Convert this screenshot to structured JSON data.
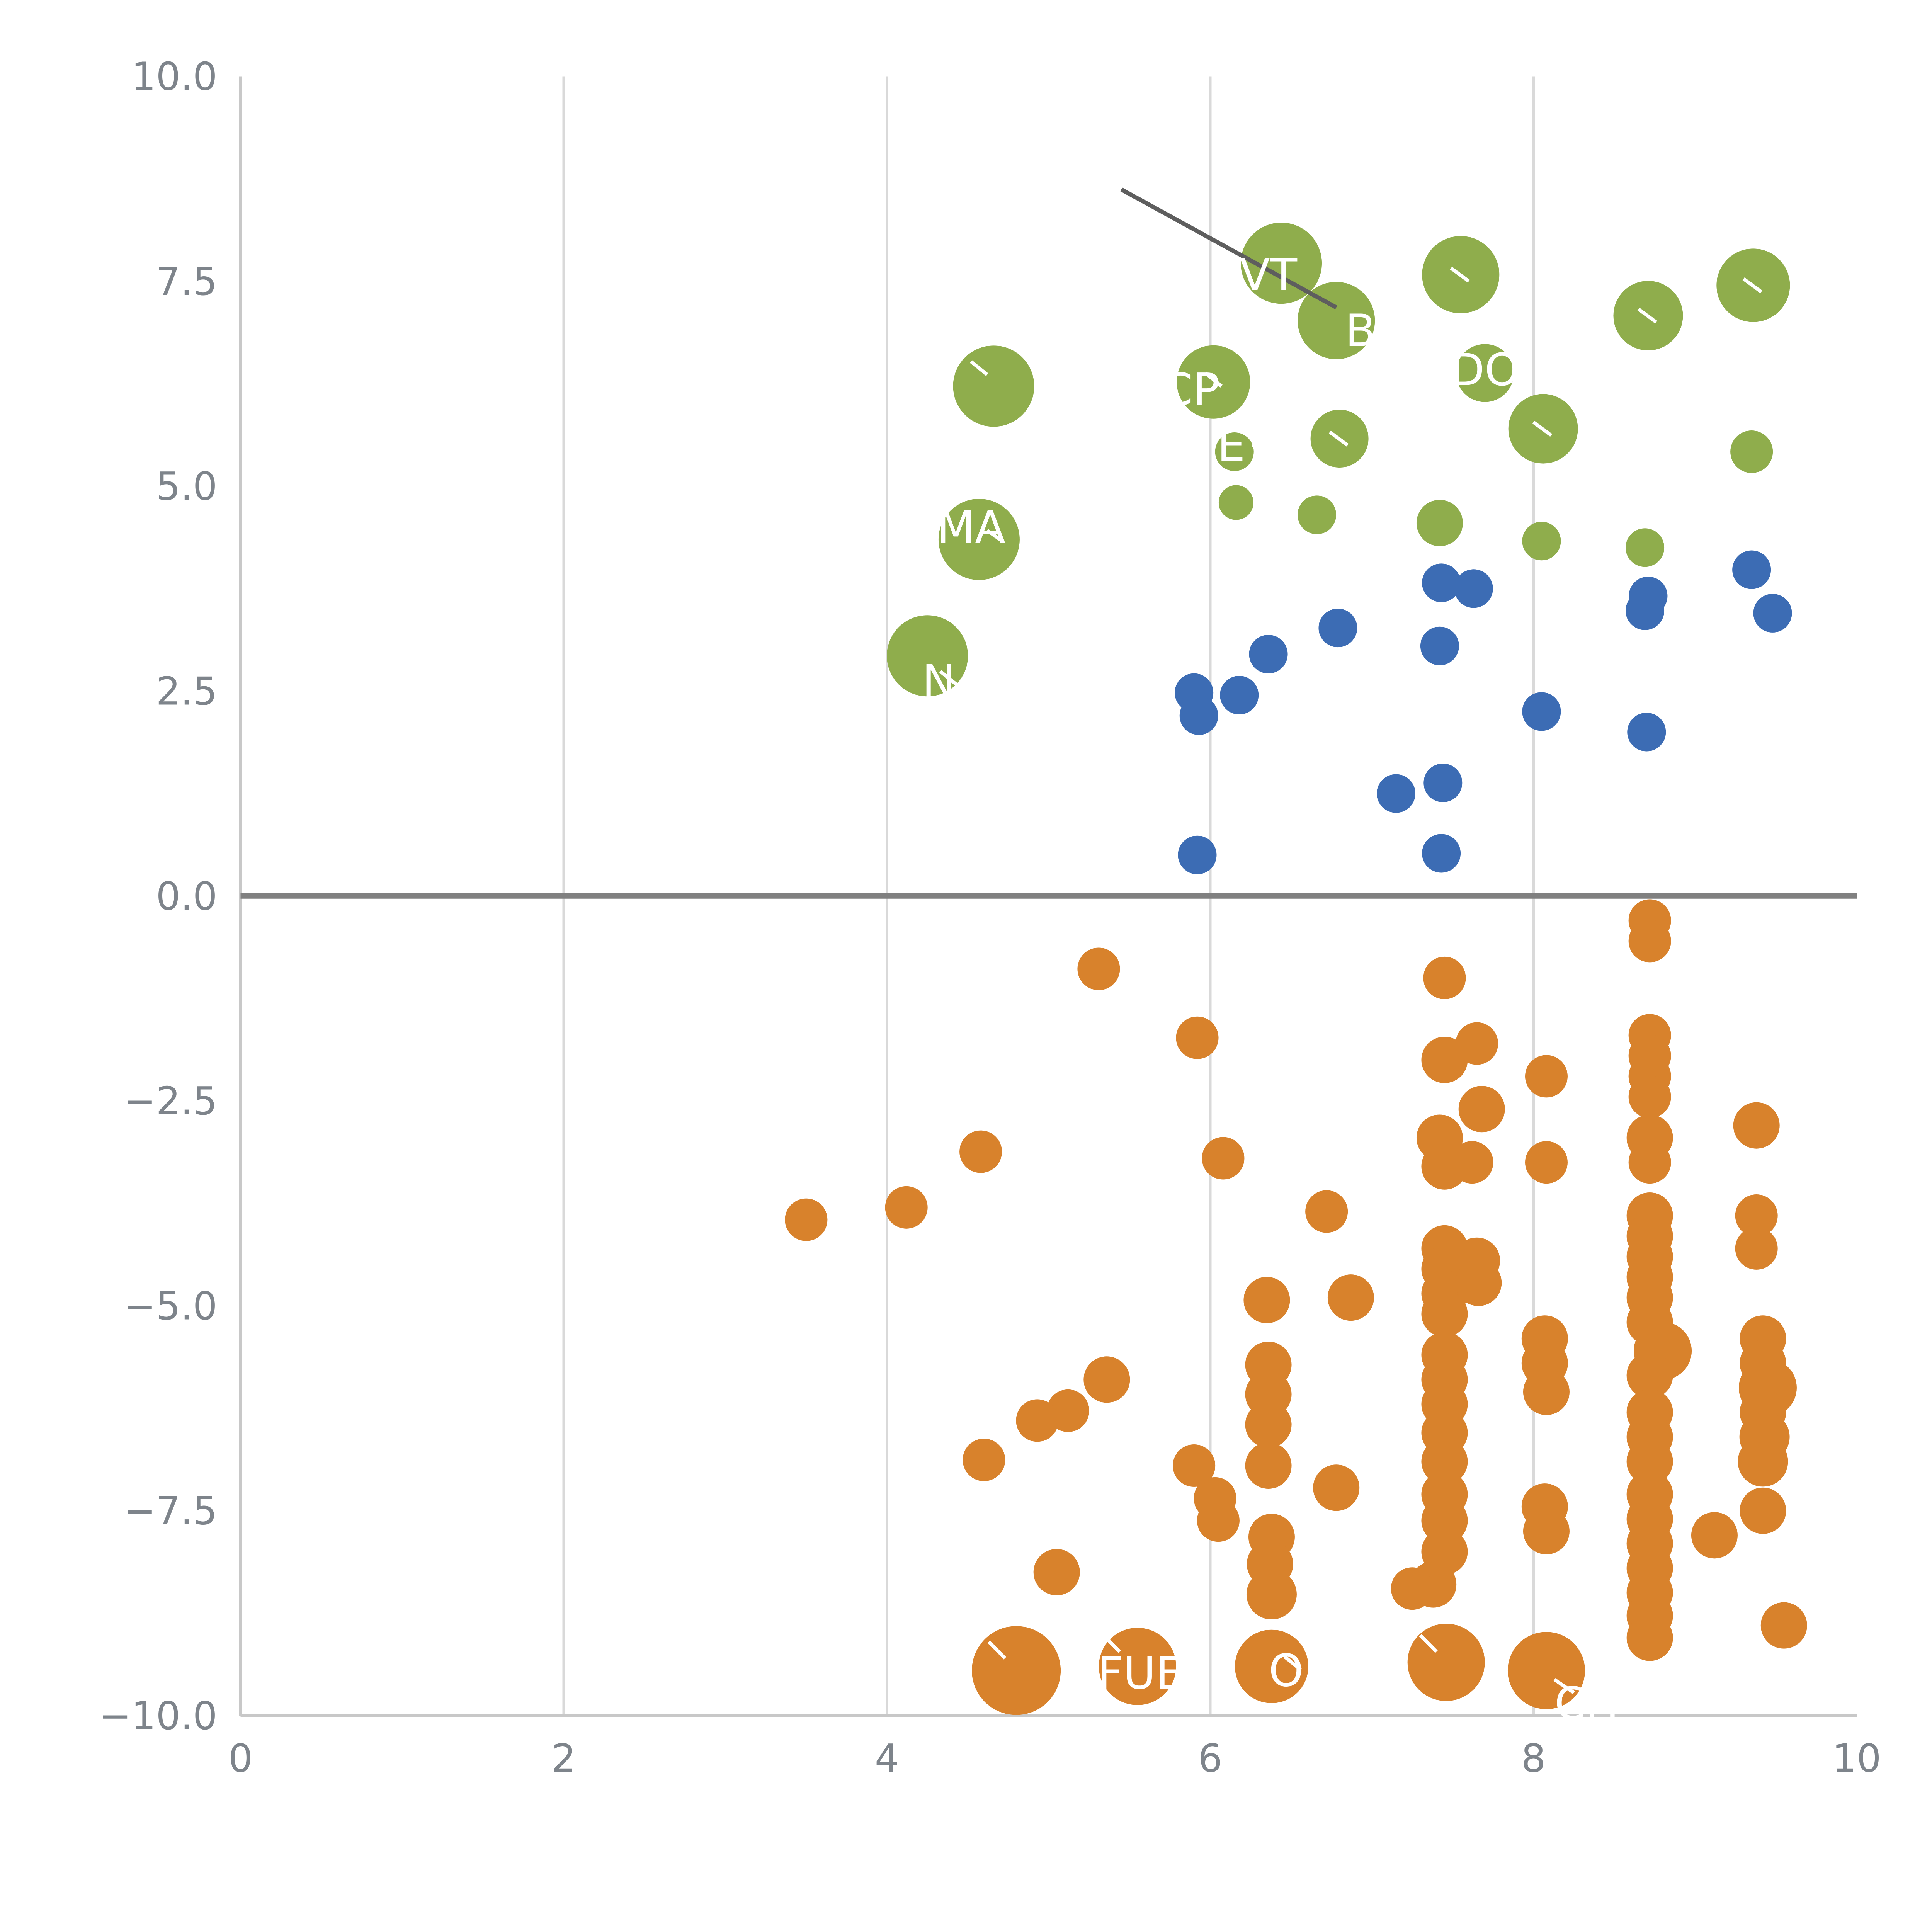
{
  "page": {
    "background": "#ffffff"
  },
  "chart_data": {
    "type": "scatter",
    "title": "",
    "xlabel": "",
    "ylabel": "",
    "xlim": [
      0,
      10
    ],
    "ylim": [
      -10,
      10
    ],
    "grid": "vertical-only",
    "legend": "none",
    "x_ticks": [
      {
        "value": 0,
        "label": "0"
      },
      {
        "value": 2,
        "label": "2"
      },
      {
        "value": 4,
        "label": "4"
      },
      {
        "value": 6,
        "label": "6"
      },
      {
        "value": 8,
        "label": "8"
      },
      {
        "value": 10,
        "label": "10"
      }
    ],
    "y_ticks": [
      {
        "value": 10,
        "label": "10.0"
      },
      {
        "value": 7.5,
        "label": "7.5"
      },
      {
        "value": 5,
        "label": "5.0"
      },
      {
        "value": 2.5,
        "label": "2.5"
      },
      {
        "value": 0,
        "label": "0.0"
      },
      {
        "value": -2.5,
        "label": "−2.5"
      },
      {
        "value": -5,
        "label": "−5.0"
      },
      {
        "value": -7.5,
        "label": "−7.5"
      },
      {
        "value": -10,
        "label": "−10.0"
      }
    ],
    "gridlines_x": [
      2,
      4,
      6,
      8
    ],
    "zero_line": {
      "y": 0,
      "color": "#808080"
    },
    "colors": {
      "grid": "#d9d9d9",
      "spine": "#c8c8c8",
      "tick_label": "#7e848b",
      "annotation_line": "#5e5e5e",
      "bubble_label": "#ffffff",
      "green": "#8FAD4C",
      "blue": "#3C6CB4",
      "orange": "#D8822C"
    },
    "point_format": [
      "x",
      "y",
      "r"
    ],
    "series": [
      {
        "name": "green-positive-large",
        "color": "#8FAD4C",
        "points": [
          [
            4.66,
            6.22,
            21
          ],
          [
            4.57,
            4.35,
            21
          ],
          [
            4.25,
            2.93,
            21
          ],
          [
            6.02,
            6.27,
            19
          ],
          [
            6.15,
            5.42,
            10
          ],
          [
            6.16,
            4.8,
            9
          ],
          [
            6.44,
            7.72,
            21
          ],
          [
            6.78,
            7.02,
            20
          ],
          [
            6.8,
            5.58,
            15
          ],
          [
            6.66,
            4.65,
            10
          ],
          [
            7.55,
            7.58,
            20
          ],
          [
            7.7,
            6.38,
            15
          ],
          [
            7.42,
            4.55,
            12
          ],
          [
            8.06,
            5.7,
            18
          ],
          [
            8.05,
            4.33,
            10
          ],
          [
            8.71,
            7.08,
            18
          ],
          [
            8.69,
            4.25,
            10
          ],
          [
            9.36,
            7.45,
            19
          ],
          [
            9.35,
            5.42,
            11
          ]
        ]
      },
      {
        "name": "blue-positive-small",
        "color": "#3C6CB4",
        "points": [
          [
            5.9,
            2.48,
            10
          ],
          [
            5.93,
            2.2,
            10
          ],
          [
            6.18,
            2.45,
            10
          ],
          [
            6.36,
            2.95,
            10
          ],
          [
            6.79,
            3.27,
            10
          ],
          [
            5.92,
            0.5,
            10
          ],
          [
            7.15,
            1.25,
            10
          ],
          [
            7.44,
            1.38,
            10
          ],
          [
            7.43,
            0.52,
            10
          ],
          [
            7.42,
            3.05,
            10
          ],
          [
            7.43,
            3.82,
            10
          ],
          [
            7.63,
            3.75,
            10
          ],
          [
            8.05,
            2.25,
            10
          ],
          [
            8.7,
            2.0,
            10
          ],
          [
            8.69,
            3.48,
            10
          ],
          [
            8.71,
            3.66,
            10
          ],
          [
            9.35,
            3.98,
            10
          ],
          [
            9.48,
            3.45,
            10
          ]
        ]
      },
      {
        "name": "orange-negative",
        "color": "#D8822C",
        "points": [
          [
            5.31,
            -0.89,
            11
          ],
          [
            5.92,
            -1.73,
            11
          ],
          [
            4.58,
            -3.12,
            11
          ],
          [
            4.12,
            -3.8,
            11
          ],
          [
            3.5,
            -3.95,
            11
          ],
          [
            6.08,
            -3.2,
            11
          ],
          [
            6.72,
            -3.85,
            11
          ],
          [
            6.35,
            -4.93,
            12
          ],
          [
            6.87,
            -4.9,
            12
          ],
          [
            6.36,
            -5.72,
            12
          ],
          [
            6.36,
            -6.08,
            12
          ],
          [
            6.36,
            -6.45,
            12
          ],
          [
            6.36,
            -6.95,
            12
          ],
          [
            5.36,
            -5.9,
            12
          ],
          [
            5.12,
            -6.28,
            11
          ],
          [
            4.93,
            -6.4,
            11
          ],
          [
            4.6,
            -6.88,
            11
          ],
          [
            5.9,
            -6.95,
            11
          ],
          [
            6.03,
            -7.35,
            11
          ],
          [
            6.05,
            -7.62,
            11
          ],
          [
            6.78,
            -7.22,
            12
          ],
          [
            6.38,
            -7.82,
            12
          ],
          [
            6.37,
            -8.15,
            12
          ],
          [
            6.38,
            -8.52,
            13
          ],
          [
            5.05,
            -8.25,
            12
          ],
          [
            4.8,
            -9.45,
            23
          ],
          [
            5.55,
            -9.4,
            20
          ],
          [
            6.38,
            -9.4,
            19
          ],
          [
            7.46,
            -9.35,
            20
          ],
          [
            8.08,
            -9.45,
            20
          ],
          [
            7.45,
            -1.0,
            11
          ],
          [
            7.45,
            -2.0,
            12
          ],
          [
            7.42,
            -2.95,
            12
          ],
          [
            7.45,
            -3.3,
            12
          ],
          [
            7.45,
            -4.3,
            12
          ],
          [
            7.45,
            -4.55,
            12
          ],
          [
            7.45,
            -4.85,
            12
          ],
          [
            7.45,
            -5.1,
            12
          ],
          [
            7.45,
            -5.6,
            12
          ],
          [
            7.45,
            -5.9,
            12
          ],
          [
            7.45,
            -6.2,
            12
          ],
          [
            7.45,
            -6.55,
            12
          ],
          [
            7.45,
            -6.9,
            12
          ],
          [
            7.45,
            -7.3,
            12
          ],
          [
            7.45,
            -7.62,
            12
          ],
          [
            7.45,
            -8.0,
            12
          ],
          [
            7.38,
            -8.4,
            12
          ],
          [
            7.25,
            -8.45,
            11
          ],
          [
            7.65,
            -1.8,
            11
          ],
          [
            7.68,
            -2.6,
            12
          ],
          [
            7.62,
            -3.25,
            11
          ],
          [
            7.65,
            -4.45,
            12
          ],
          [
            7.66,
            -4.72,
            12
          ],
          [
            8.08,
            -2.2,
            11
          ],
          [
            8.08,
            -3.25,
            11
          ],
          [
            8.07,
            -5.4,
            12
          ],
          [
            8.07,
            -5.7,
            12
          ],
          [
            8.08,
            -6.05,
            12
          ],
          [
            8.07,
            -7.45,
            12
          ],
          [
            8.08,
            -7.75,
            12
          ],
          [
            8.72,
            -0.3,
            11
          ],
          [
            8.72,
            -0.55,
            11
          ],
          [
            8.72,
            -1.7,
            11
          ],
          [
            8.72,
            -1.95,
            11
          ],
          [
            8.72,
            -2.2,
            11
          ],
          [
            8.72,
            -2.45,
            11
          ],
          [
            8.72,
            -2.95,
            12
          ],
          [
            8.72,
            -3.25,
            11
          ],
          [
            8.72,
            -3.9,
            12
          ],
          [
            8.72,
            -4.15,
            12
          ],
          [
            8.72,
            -4.4,
            12
          ],
          [
            8.72,
            -4.65,
            12
          ],
          [
            8.72,
            -4.9,
            12
          ],
          [
            8.72,
            -5.2,
            12
          ],
          [
            8.8,
            -5.55,
            15
          ],
          [
            8.72,
            -5.85,
            12
          ],
          [
            8.72,
            -6.3,
            12
          ],
          [
            8.72,
            -6.6,
            12
          ],
          [
            8.72,
            -6.9,
            12
          ],
          [
            8.72,
            -7.3,
            12
          ],
          [
            8.72,
            -7.6,
            12
          ],
          [
            8.72,
            -7.9,
            12
          ],
          [
            8.72,
            -8.2,
            12
          ],
          [
            8.72,
            -8.5,
            12
          ],
          [
            8.72,
            -8.78,
            12
          ],
          [
            8.72,
            -9.05,
            12
          ],
          [
            9.12,
            -7.8,
            12
          ],
          [
            9.38,
            -2.8,
            12
          ],
          [
            9.38,
            -3.9,
            11
          ],
          [
            9.38,
            -4.3,
            11
          ],
          [
            9.42,
            -5.4,
            12
          ],
          [
            9.42,
            -5.7,
            12
          ],
          [
            9.45,
            -6.0,
            15
          ],
          [
            9.42,
            -6.3,
            12
          ],
          [
            9.43,
            -6.6,
            13
          ],
          [
            9.42,
            -6.9,
            13
          ],
          [
            9.42,
            -7.5,
            12
          ],
          [
            9.55,
            -8.9,
            12
          ]
        ]
      }
    ],
    "annotations": {
      "line": {
        "x1": 5.45,
        "y1": 8.62,
        "x2": 6.78,
        "y2": 7.18
      },
      "labels": [
        {
          "text": "VT",
          "x": 6.36,
          "y": 7.58
        },
        {
          "text": "B",
          "x": 6.93,
          "y": 6.9
        },
        {
          "text": "DO",
          "x": 7.7,
          "y": 6.42
        },
        {
          "text": "CP",
          "x": 5.88,
          "y": 6.18
        },
        {
          "text": "E",
          "x": 6.13,
          "y": 5.5
        },
        {
          "text": "MA",
          "x": 4.52,
          "y": 4.5
        },
        {
          "text": "N",
          "x": 4.32,
          "y": 2.62
        },
        {
          "text": "FUE",
          "x": 5.57,
          "y": -9.48
        },
        {
          "text": "O",
          "x": 6.47,
          "y": -9.45
        },
        {
          "text": "CH",
          "x": 8.33,
          "y": -9.85
        }
      ],
      "leaders": [
        {
          "x1": 4.52,
          "y1": 6.52,
          "x2": 4.62,
          "y2": 6.36
        },
        {
          "x1": 5.97,
          "y1": 6.38,
          "x2": 6.07,
          "y2": 6.22
        },
        {
          "x1": 6.26,
          "y1": 5.5,
          "x2": 6.4,
          "y2": 5.42
        },
        {
          "x1": 4.62,
          "y1": 4.46,
          "x2": 4.72,
          "y2": 4.32
        },
        {
          "x1": 4.33,
          "y1": 2.74,
          "x2": 4.43,
          "y2": 2.58
        },
        {
          "x1": 7.49,
          "y1": 7.66,
          "x2": 7.6,
          "y2": 7.5
        },
        {
          "x1": 8.0,
          "y1": 5.78,
          "x2": 8.11,
          "y2": 5.62
        },
        {
          "x1": 8.65,
          "y1": 7.16,
          "x2": 8.76,
          "y2": 7.0
        },
        {
          "x1": 9.3,
          "y1": 7.53,
          "x2": 9.41,
          "y2": 7.37
        },
        {
          "x1": 6.74,
          "y1": 5.66,
          "x2": 6.85,
          "y2": 5.5
        },
        {
          "x1": 7.4,
          "y1": -9.22,
          "x2": 7.3,
          "y2": -9.02
        },
        {
          "x1": 4.73,
          "y1": -9.3,
          "x2": 4.63,
          "y2": -9.1
        },
        {
          "x1": 6.46,
          "y1": -9.28,
          "x2": 6.56,
          "y2": -9.44
        },
        {
          "x1": 8.13,
          "y1": -9.56,
          "x2": 8.25,
          "y2": -9.72
        },
        {
          "x1": 5.44,
          "y1": -9.22,
          "x2": 5.34,
          "y2": -9.02
        }
      ]
    }
  }
}
